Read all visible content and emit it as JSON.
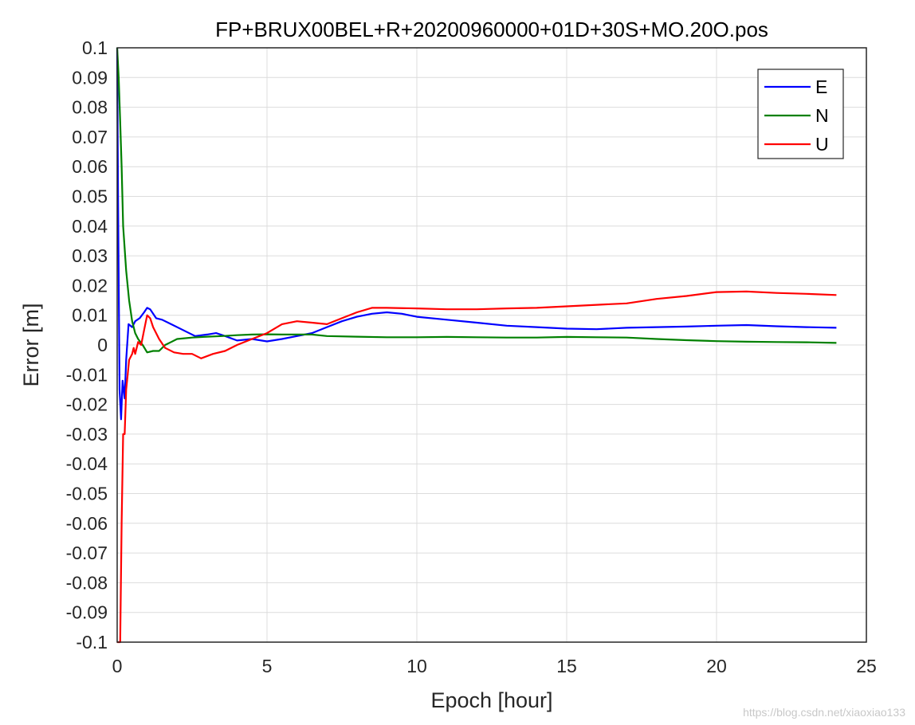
{
  "chart_data": {
    "type": "line",
    "title": "FP+BRUX00BEL+R+20200960000+01D+30S+MO.20O.pos",
    "xlabel": "Epoch [hour]",
    "ylabel": "Error [m]",
    "xlim": [
      0,
      25
    ],
    "ylim": [
      -0.1,
      0.1
    ],
    "xticks": [
      0,
      5,
      10,
      15,
      20,
      25
    ],
    "yticks": [
      0.1,
      0.09,
      0.08,
      0.07,
      0.06,
      0.05,
      0.04,
      0.03,
      0.02,
      0.01,
      0,
      -0.01,
      -0.02,
      -0.03,
      -0.04,
      -0.05,
      -0.06,
      -0.07,
      -0.08,
      -0.09,
      -0.1
    ],
    "ytick_labels": [
      "0.1",
      "0.09",
      "0.08",
      "0.07",
      "0.06",
      "0.05",
      "0.04",
      "0.03",
      "0.02",
      "0.01",
      "0",
      "-0.01",
      "-0.02",
      "-0.03",
      "-0.04",
      "-0.05",
      "-0.06",
      "-0.07",
      "-0.08",
      "-0.09",
      "-0.1"
    ],
    "grid": true,
    "legend_position": "top-right",
    "series": [
      {
        "name": "E",
        "color": "#0000ff",
        "points": [
          [
            0,
            0.1
          ],
          [
            0.03,
            0.05
          ],
          [
            0.08,
            -0.015
          ],
          [
            0.13,
            -0.025
          ],
          [
            0.18,
            -0.012
          ],
          [
            0.25,
            -0.018
          ],
          [
            0.3,
            -0.005
          ],
          [
            0.38,
            0.007
          ],
          [
            0.5,
            0.006
          ],
          [
            0.6,
            0.008
          ],
          [
            0.75,
            0.009
          ],
          [
            0.9,
            0.011
          ],
          [
            1.0,
            0.0125
          ],
          [
            1.1,
            0.012
          ],
          [
            1.3,
            0.009
          ],
          [
            1.5,
            0.0085
          ],
          [
            1.8,
            0.007
          ],
          [
            2.2,
            0.005
          ],
          [
            2.6,
            0.003
          ],
          [
            3.0,
            0.0035
          ],
          [
            3.3,
            0.004
          ],
          [
            3.6,
            0.003
          ],
          [
            4.0,
            0.0015
          ],
          [
            4.5,
            0.002
          ],
          [
            5.0,
            0.0012
          ],
          [
            5.5,
            0.002
          ],
          [
            6.0,
            0.003
          ],
          [
            6.5,
            0.004
          ],
          [
            7.0,
            0.006
          ],
          [
            7.5,
            0.008
          ],
          [
            8.0,
            0.0095
          ],
          [
            8.5,
            0.0105
          ],
          [
            9.0,
            0.011
          ],
          [
            9.5,
            0.0105
          ],
          [
            10.0,
            0.0095
          ],
          [
            11.0,
            0.0085
          ],
          [
            12.0,
            0.0075
          ],
          [
            13.0,
            0.0065
          ],
          [
            14.0,
            0.006
          ],
          [
            15.0,
            0.0055
          ],
          [
            16.0,
            0.0053
          ],
          [
            17.0,
            0.0058
          ],
          [
            18.0,
            0.006
          ],
          [
            19.0,
            0.0062
          ],
          [
            20.0,
            0.0065
          ],
          [
            21.0,
            0.0067
          ],
          [
            22.0,
            0.0063
          ],
          [
            23.0,
            0.006
          ],
          [
            24.0,
            0.0058
          ]
        ]
      },
      {
        "name": "N",
        "color": "#008000",
        "points": [
          [
            0,
            0.1
          ],
          [
            0.05,
            0.09
          ],
          [
            0.1,
            0.075
          ],
          [
            0.15,
            0.06
          ],
          [
            0.2,
            0.04
          ],
          [
            0.3,
            0.025
          ],
          [
            0.4,
            0.015
          ],
          [
            0.5,
            0.008
          ],
          [
            0.6,
            0.004
          ],
          [
            0.7,
            0.002
          ],
          [
            0.85,
            0.0
          ],
          [
            1.0,
            -0.0025
          ],
          [
            1.2,
            -0.002
          ],
          [
            1.4,
            -0.002
          ],
          [
            1.6,
            0.0
          ],
          [
            1.8,
            0.001
          ],
          [
            2.0,
            0.002
          ],
          [
            2.5,
            0.0025
          ],
          [
            3.0,
            0.0028
          ],
          [
            3.5,
            0.003
          ],
          [
            4.0,
            0.0033
          ],
          [
            4.5,
            0.0035
          ],
          [
            5.0,
            0.0036
          ],
          [
            5.5,
            0.0035
          ],
          [
            6.0,
            0.0035
          ],
          [
            6.5,
            0.0035
          ],
          [
            7.0,
            0.003
          ],
          [
            8.0,
            0.0028
          ],
          [
            9.0,
            0.0026
          ],
          [
            10.0,
            0.0026
          ],
          [
            11.0,
            0.0027
          ],
          [
            12.0,
            0.0026
          ],
          [
            13.0,
            0.0025
          ],
          [
            14.0,
            0.0025
          ],
          [
            15.0,
            0.0027
          ],
          [
            16.0,
            0.0026
          ],
          [
            17.0,
            0.0025
          ],
          [
            18.0,
            0.002
          ],
          [
            19.0,
            0.0016
          ],
          [
            20.0,
            0.0013
          ],
          [
            21.0,
            0.0011
          ],
          [
            22.0,
            0.001
          ],
          [
            23.0,
            0.0009
          ],
          [
            24.0,
            0.0007
          ]
        ]
      },
      {
        "name": "U",
        "color": "#ff0000",
        "points": [
          [
            0.0,
            -0.1
          ],
          [
            0.1,
            -0.1
          ],
          [
            0.15,
            -0.06
          ],
          [
            0.2,
            -0.03
          ],
          [
            0.25,
            -0.03
          ],
          [
            0.3,
            -0.015
          ],
          [
            0.35,
            -0.01
          ],
          [
            0.4,
            -0.005
          ],
          [
            0.5,
            -0.003
          ],
          [
            0.55,
            -0.001
          ],
          [
            0.6,
            -0.003
          ],
          [
            0.7,
            0.001
          ],
          [
            0.8,
            0.0
          ],
          [
            0.9,
            0.005
          ],
          [
            1.0,
            0.01
          ],
          [
            1.1,
            0.009
          ],
          [
            1.2,
            0.006
          ],
          [
            1.4,
            0.002
          ],
          [
            1.6,
            -0.001
          ],
          [
            1.9,
            -0.0025
          ],
          [
            2.2,
            -0.003
          ],
          [
            2.5,
            -0.003
          ],
          [
            2.8,
            -0.0045
          ],
          [
            3.2,
            -0.003
          ],
          [
            3.6,
            -0.002
          ],
          [
            4.0,
            0.0
          ],
          [
            4.5,
            0.002
          ],
          [
            5.0,
            0.004
          ],
          [
            5.5,
            0.007
          ],
          [
            6.0,
            0.008
          ],
          [
            6.5,
            0.0075
          ],
          [
            7.0,
            0.007
          ],
          [
            7.5,
            0.009
          ],
          [
            8.0,
            0.011
          ],
          [
            8.5,
            0.0125
          ],
          [
            9.0,
            0.0125
          ],
          [
            10.0,
            0.0123
          ],
          [
            11.0,
            0.012
          ],
          [
            12.0,
            0.012
          ],
          [
            13.0,
            0.0123
          ],
          [
            14.0,
            0.0125
          ],
          [
            15.0,
            0.013
          ],
          [
            16.0,
            0.0135
          ],
          [
            17.0,
            0.014
          ],
          [
            18.0,
            0.0155
          ],
          [
            19.0,
            0.0165
          ],
          [
            20.0,
            0.0178
          ],
          [
            21.0,
            0.018
          ],
          [
            22.0,
            0.0175
          ],
          [
            23.0,
            0.0172
          ],
          [
            24.0,
            0.0168
          ]
        ]
      }
    ]
  },
  "watermark": "https://blog.csdn.net/xiaoxiao133"
}
